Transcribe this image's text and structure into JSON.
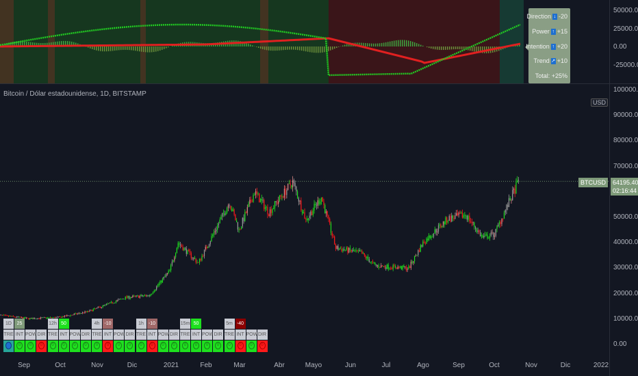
{
  "title": "Bitcoin / Dólar estadounidense, 1D, BITSTAMP",
  "currency_label": "USD",
  "symbol_label": "BTCUSD",
  "last_price": "64195.40",
  "countdown": "02:16:44",
  "indicator_axis": [
    "50000.00",
    "25000.00",
    "0.00",
    "-25000.00"
  ],
  "price_axis": [
    "100000.00",
    "90000.00",
    "80000.00",
    "70000.00",
    "50000.00",
    "40000.00",
    "30000.00",
    "20000.00",
    "10000.00",
    "0.00"
  ],
  "x_axis": [
    "Sep",
    "Oct",
    "Nov",
    "Dic",
    "2021",
    "Feb",
    "Mar",
    "Abr",
    "Mayo",
    "Jun",
    "Jul",
    "Ago",
    "Sep",
    "Oct",
    "Nov",
    "Dic",
    "2022"
  ],
  "panel": {
    "rows": [
      {
        "label": "Direction",
        "icon": "arrow-down",
        "value": "-20"
      },
      {
        "label": "Power",
        "icon": "arrow-up",
        "value": "+15"
      },
      {
        "label": "Intention",
        "icon": "arrow-up",
        "value": "+20"
      },
      {
        "label": "Trend",
        "icon": "arrow-diagonal-up",
        "value": "+10"
      }
    ],
    "total": "Total: +25%"
  },
  "table": {
    "columns": [
      "TRE",
      "INT",
      "POW",
      "DIR"
    ],
    "groups": [
      {
        "tf": "1D",
        "score": "25",
        "score_color": "#7f9a7a",
        "states": [
          "blue",
          "green",
          "green",
          "red"
        ]
      },
      {
        "tf": "12h",
        "score": "50",
        "score_color": "#1ee01e",
        "states": [
          "green",
          "green",
          "green",
          "green"
        ]
      },
      {
        "tf": "4h",
        "score": "-10",
        "score_color": "#a06868",
        "states": [
          "green",
          "red",
          "green",
          "green"
        ]
      },
      {
        "tf": "1h",
        "score": "-10",
        "score_color": "#a06868",
        "states": [
          "green",
          "red",
          "green",
          "green"
        ]
      },
      {
        "tf": "15m",
        "score": "50",
        "score_color": "#1ee01e",
        "states": [
          "green",
          "green",
          "green",
          "green"
        ]
      },
      {
        "tf": "5m",
        "score": "-40",
        "score_color": "#8b0000",
        "states": [
          "green",
          "red",
          "green",
          "red"
        ]
      }
    ],
    "dot_value": "0"
  },
  "chart_data": {
    "type": "candlestick",
    "title": "Bitcoin / Dólar estadounidense, 1D, BITSTAMP",
    "ylim": [
      0,
      100000
    ],
    "x_range": [
      "2020-08-10",
      "2021-10-20"
    ],
    "approx_close": [
      [
        "2020-08-10",
        11600
      ],
      [
        "2020-09-05",
        10200
      ],
      [
        "2020-10-01",
        10700
      ],
      [
        "2020-10-25",
        13000
      ],
      [
        "2020-11-25",
        18500
      ],
      [
        "2020-12-15",
        19300
      ],
      [
        "2021-01-01",
        29000
      ],
      [
        "2021-01-08",
        40000
      ],
      [
        "2021-01-25",
        32000
      ],
      [
        "2021-02-20",
        56000
      ],
      [
        "2021-02-28",
        45000
      ],
      [
        "2021-03-13",
        60000
      ],
      [
        "2021-03-25",
        52000
      ],
      [
        "2021-04-14",
        64000
      ],
      [
        "2021-04-25",
        49000
      ],
      [
        "2021-05-08",
        58000
      ],
      [
        "2021-05-20",
        38000
      ],
      [
        "2021-06-10",
        36000
      ],
      [
        "2021-06-22",
        31000
      ],
      [
        "2021-07-20",
        30000
      ],
      [
        "2021-08-01",
        40000
      ],
      [
        "2021-08-22",
        49500
      ],
      [
        "2021-09-06",
        51000
      ],
      [
        "2021-09-20",
        42000
      ],
      [
        "2021-09-30",
        43500
      ],
      [
        "2021-10-20",
        64195
      ]
    ],
    "colors": {
      "up": "#1ee01e",
      "down": "#ff1a1a",
      "neutral": "#9a9a9a"
    },
    "grid": false
  }
}
